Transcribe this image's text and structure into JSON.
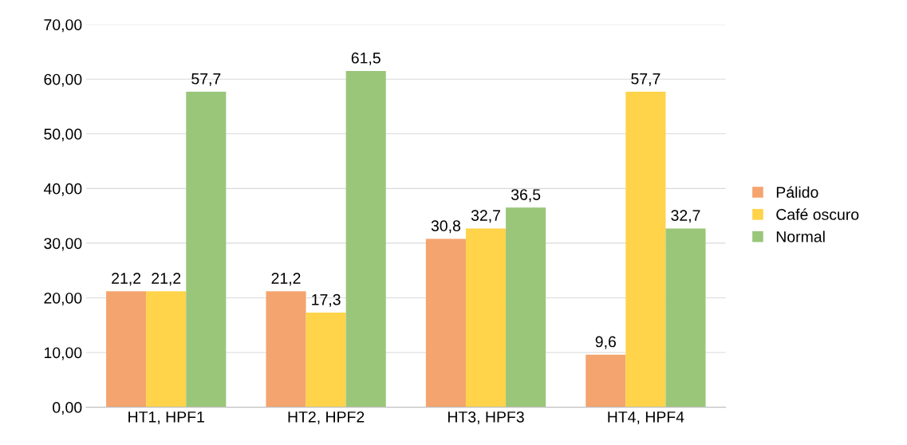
{
  "chart_data": {
    "type": "bar",
    "categories": [
      "HT1, HPF1",
      "HT2, HPF2",
      "HT3, HPF3",
      "HT4, HPF4"
    ],
    "series": [
      {
        "name": "Pálido",
        "color": "#f4a46e",
        "values": [
          21.2,
          21.2,
          30.8,
          9.6
        ],
        "value_labels": [
          "21,2",
          "21,2",
          "30,8",
          "9,6"
        ]
      },
      {
        "name": "Café oscuro",
        "color": "#ffd34a",
        "values": [
          21.2,
          17.3,
          32.7,
          57.7
        ],
        "value_labels": [
          "21,2",
          "17,3",
          "32,7",
          "57,7"
        ]
      },
      {
        "name": "Normal",
        "color": "#9ac67a",
        "values": [
          57.7,
          61.5,
          36.5,
          32.7
        ],
        "value_labels": [
          "57,7",
          "61,5",
          "36,5",
          "32,7"
        ]
      }
    ],
    "ylim": [
      0,
      70
    ],
    "yticks": [
      {
        "value": 0,
        "label": "0,00"
      },
      {
        "value": 10,
        "label": "10,00"
      },
      {
        "value": 20,
        "label": "20,00"
      },
      {
        "value": 30,
        "label": "30,00"
      },
      {
        "value": 40,
        "label": "40,00"
      },
      {
        "value": 50,
        "label": "50,00"
      },
      {
        "value": 60,
        "label": "60,00"
      },
      {
        "value": 70,
        "label": "70,00"
      }
    ],
    "grid": "y",
    "legend": "right"
  }
}
